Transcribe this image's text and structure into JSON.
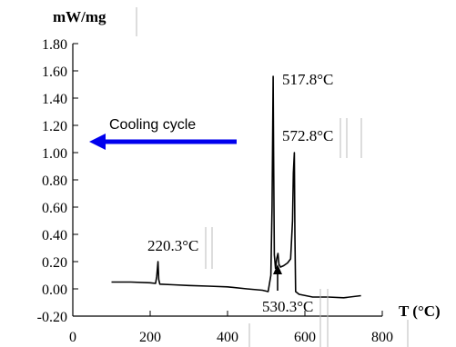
{
  "chart_data": {
    "type": "line",
    "ylabel": "mW/mg",
    "xlabel": "T (°C)",
    "xlim": [
      0,
      800
    ],
    "ylim": [
      -0.2,
      1.8
    ],
    "x_ticks": [
      0,
      200,
      400,
      600,
      800
    ],
    "x_tick_labels": [
      "0",
      "200",
      "400",
      "600",
      "800"
    ],
    "y_ticks": [
      1.8,
      1.6,
      1.4,
      1.2,
      1.0,
      0.8,
      0.6,
      0.4,
      0.2,
      0.0,
      -0.2
    ],
    "y_tick_labels": [
      "1.80",
      "1.60",
      "1.40",
      "1.20",
      "1.00",
      "0.80",
      "0.60",
      "0.40",
      "0.20",
      "0.00",
      "-0.20"
    ],
    "grid": false,
    "series": [
      {
        "color": "#000000",
        "points": [
          [
            100,
            0.05
          ],
          [
            150,
            0.05
          ],
          [
            200,
            0.045
          ],
          [
            214,
            0.04
          ],
          [
            217,
            0.09
          ],
          [
            220.3,
            0.2
          ],
          [
            222,
            0.07
          ],
          [
            225,
            0.035
          ],
          [
            260,
            0.03
          ],
          [
            300,
            0.025
          ],
          [
            350,
            0.02
          ],
          [
            400,
            0.015
          ],
          [
            450,
            0.0
          ],
          [
            490,
            -0.01
          ],
          [
            505,
            -0.02
          ],
          [
            512,
            0.1
          ],
          [
            515,
            0.6
          ],
          [
            517.8,
            1.56
          ],
          [
            519,
            1.0
          ],
          [
            521,
            0.25
          ],
          [
            524,
            0.15
          ],
          [
            527,
            0.22
          ],
          [
            530.3,
            0.26
          ],
          [
            533,
            0.18
          ],
          [
            537,
            0.16
          ],
          [
            545,
            0.17
          ],
          [
            555,
            0.19
          ],
          [
            563,
            0.22
          ],
          [
            568,
            0.5
          ],
          [
            570,
            0.85
          ],
          [
            572.8,
            1.0
          ],
          [
            574,
            0.4
          ],
          [
            576,
            -0.02
          ],
          [
            585,
            -0.04
          ],
          [
            620,
            -0.06
          ],
          [
            660,
            -0.06
          ],
          [
            700,
            -0.065
          ],
          [
            745,
            -0.05
          ]
        ]
      }
    ],
    "annotations": [
      {
        "text": "517.8°C",
        "x": 517.8,
        "y": 1.56
      },
      {
        "text": "572.8°C",
        "x": 572.8,
        "y": 1.0
      },
      {
        "text": "220.3°C",
        "x": 220.3,
        "y": 0.2
      },
      {
        "text": "530.3°C",
        "x": 530.3,
        "y": 0.26
      }
    ],
    "arrow_label": "Cooling cycle",
    "arrow_color": "#0000ee"
  }
}
